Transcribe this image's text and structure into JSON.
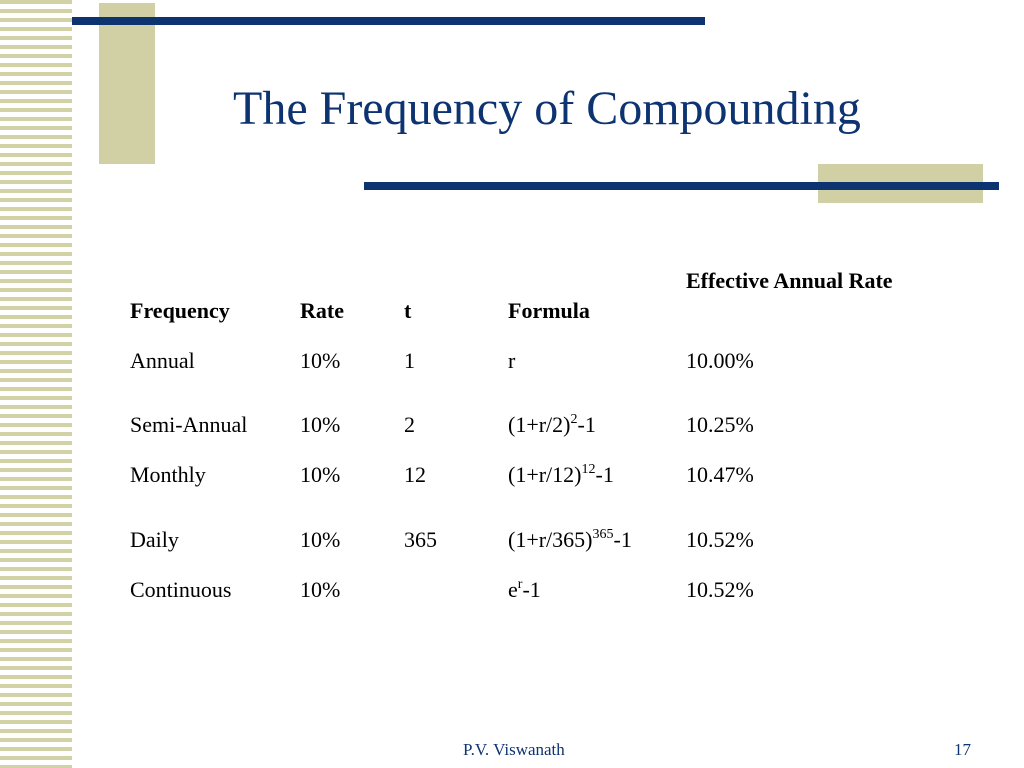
{
  "slide": {
    "title": "The Frequency of Compounding",
    "footer_author": "P.V. Viswanath",
    "page_number": "17"
  },
  "table": {
    "headers": [
      "Frequency",
      "Rate",
      "t",
      "Formula",
      "Effective Annual Rate"
    ],
    "rows": [
      {
        "frequency": "Annual",
        "rate": "10%",
        "t": "1",
        "formula_base": "r",
        "formula_exp": "",
        "formula_tail": "",
        "effective": "10.00%"
      },
      {
        "frequency": "Semi-Annual",
        "rate": "10%",
        "t": "2",
        "formula_base": "(1+r/2)",
        "formula_exp": "2",
        "formula_tail": "-1",
        "effective": "10.25%"
      },
      {
        "frequency": "Monthly",
        "rate": "10%",
        "t": "12",
        "formula_base": "(1+r/12)",
        "formula_exp": "12",
        "formula_tail": "-1",
        "effective": "10.47%"
      },
      {
        "frequency": "Daily",
        "rate": "10%",
        "t": "365",
        "formula_base": "(1+r/365)",
        "formula_exp": "365",
        "formula_tail": "-1",
        "effective": "10.52%"
      },
      {
        "frequency": "Continuous",
        "rate": "10%",
        "t": "",
        "formula_base": "e",
        "formula_exp": "r",
        "formula_tail": "-1",
        "effective": "10.52%"
      }
    ]
  },
  "colors": {
    "title": "#0d3371",
    "accent_bar": "#0d3371",
    "accent_square": "#d0d0a4",
    "stripe": "#d2d2a6"
  }
}
